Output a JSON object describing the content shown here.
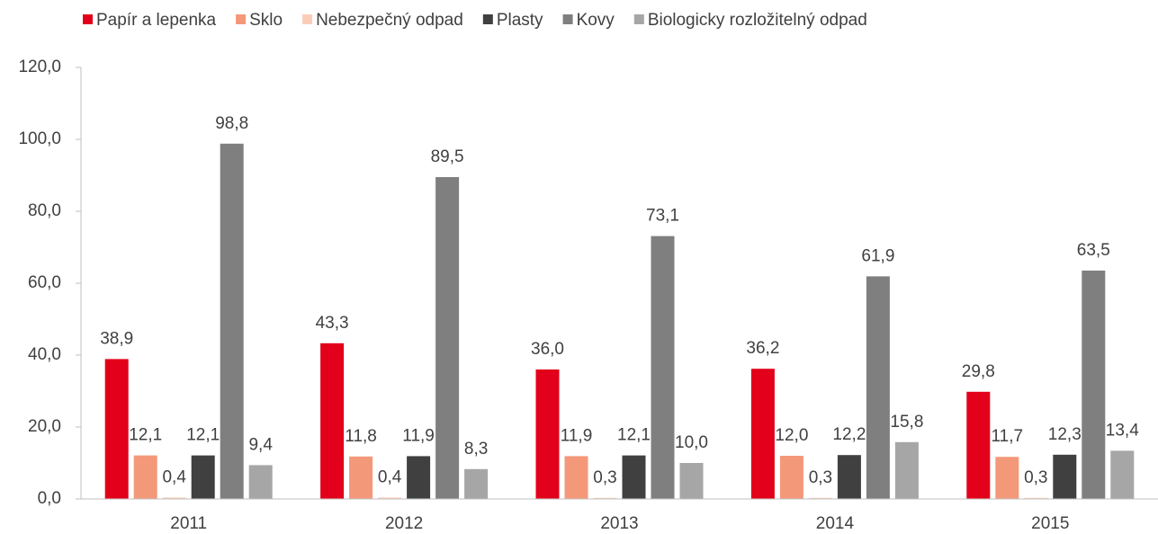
{
  "chart_data": {
    "type": "bar",
    "categories": [
      "2011",
      "2012",
      "2013",
      "2014",
      "2015"
    ],
    "series": [
      {
        "name": "Papír a lepenka",
        "color": "#e2001a",
        "values": [
          38.9,
          43.3,
          36.0,
          36.2,
          29.8
        ],
        "value_labels": [
          "38,9",
          "43,3",
          "36,0",
          "36,2",
          "29,8"
        ]
      },
      {
        "name": "Sklo",
        "color": "#f4987a",
        "values": [
          12.1,
          11.8,
          11.9,
          12.0,
          11.7
        ],
        "value_labels": [
          "12,1",
          "11,8",
          "11,9",
          "12,0",
          "11,7"
        ]
      },
      {
        "name": "Nebezpečný odpad",
        "color": "#fbcdb8",
        "values": [
          0.4,
          0.4,
          0.3,
          0.3,
          0.3
        ],
        "value_labels": [
          "0,4",
          "0,4",
          "0,3",
          "0,3",
          "0,3"
        ]
      },
      {
        "name": "Plasty",
        "color": "#404040",
        "values": [
          12.1,
          11.9,
          12.1,
          12.2,
          12.3
        ],
        "value_labels": [
          "12,1",
          "11,9",
          "12,1",
          "12,2",
          "12,3"
        ]
      },
      {
        "name": "Kovy",
        "color": "#7f7f7f",
        "values": [
          98.8,
          89.5,
          73.1,
          61.9,
          63.5
        ],
        "value_labels": [
          "98,8",
          "89,5",
          "73,1",
          "61,9",
          "63,5"
        ]
      },
      {
        "name": "Biologicky rozložitelný odpad",
        "color": "#a6a6a6",
        "values": [
          9.4,
          8.3,
          10.0,
          15.8,
          13.4
        ],
        "value_labels": [
          "9,4",
          "8,3",
          "10,0",
          "15,8",
          "13,4"
        ]
      }
    ],
    "ylim": [
      0,
      120
    ],
    "yticks": [
      {
        "value": 0,
        "label": "0,0"
      },
      {
        "value": 20,
        "label": "20,0"
      },
      {
        "value": 40,
        "label": "40,0"
      },
      {
        "value": 60,
        "label": "60,0"
      },
      {
        "value": 80,
        "label": "80,0"
      },
      {
        "value": 100,
        "label": "100,0"
      },
      {
        "value": 120,
        "label": "120,0"
      }
    ],
    "legend": "top"
  }
}
